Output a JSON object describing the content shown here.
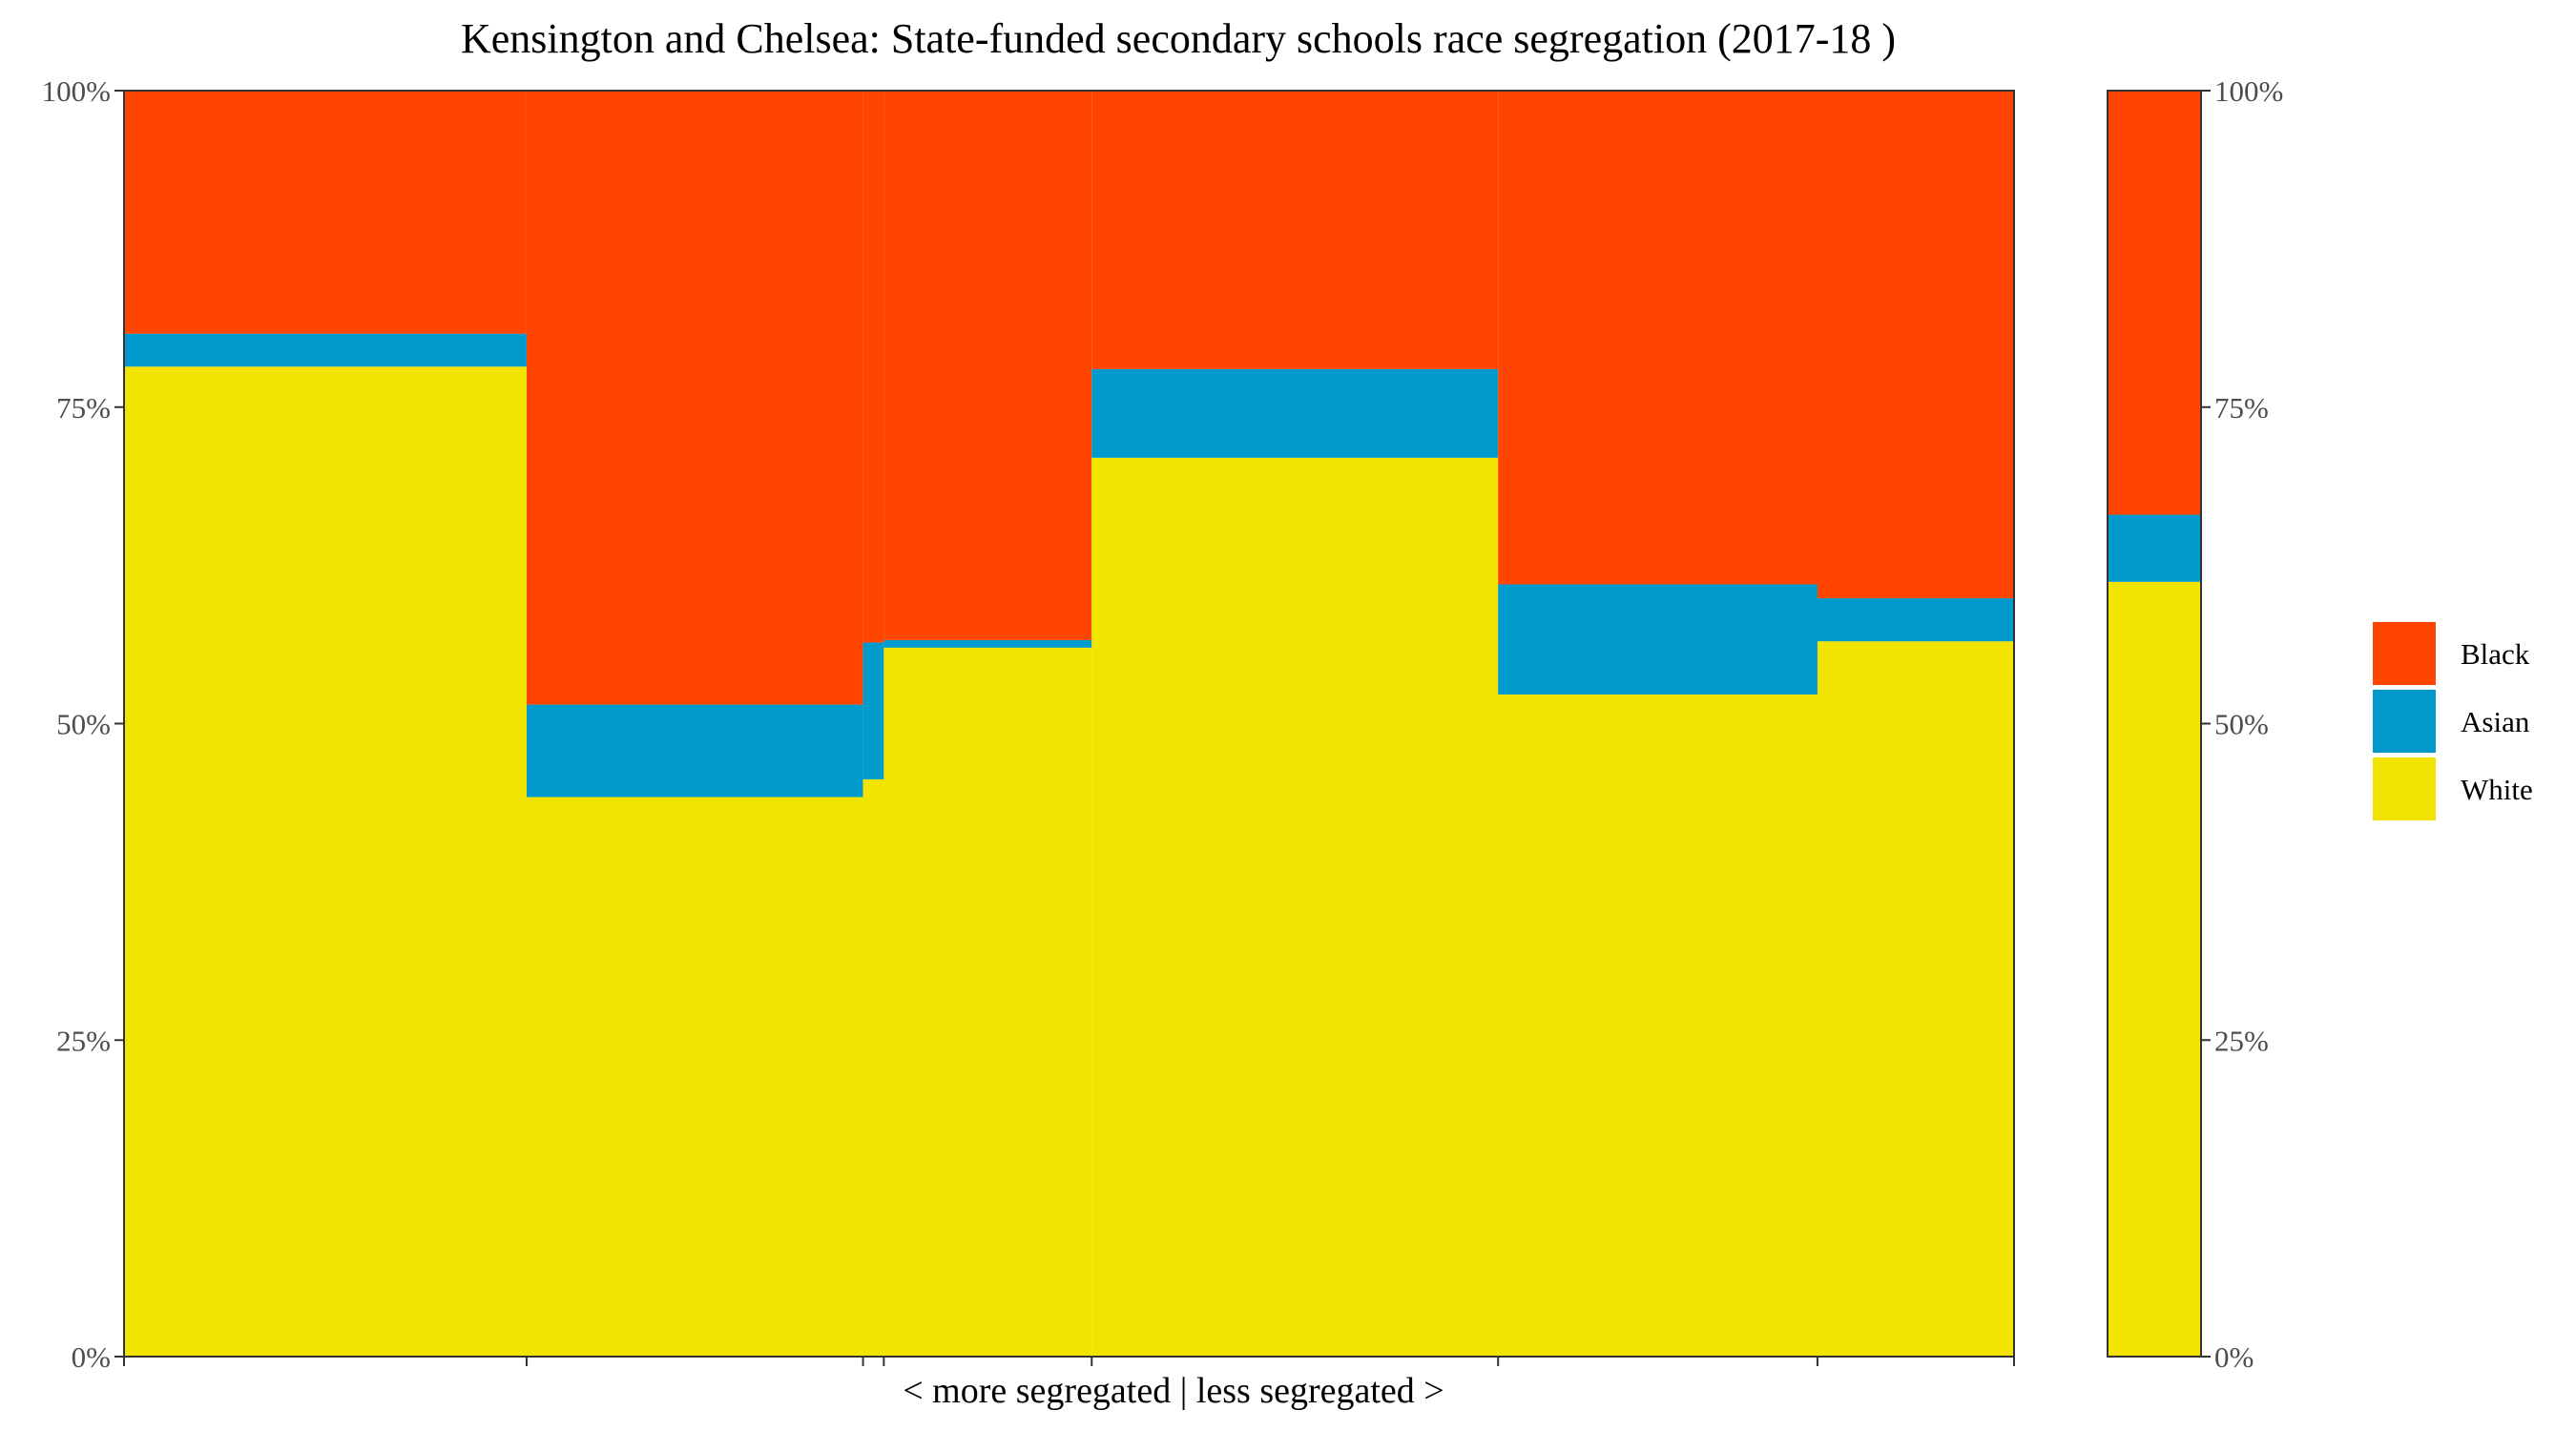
{
  "chart_data": {
    "type": "bar",
    "title": "Kensington and Chelsea: State-funded secondary schools race segregation (2017-18 )",
    "xlabel": "< more segregated | less segregated >",
    "ylabel": "",
    "ylim": [
      0,
      100
    ],
    "y_ticks": [
      "0%",
      "25%",
      "50%",
      "75%",
      "100%"
    ],
    "stack_order": [
      "White",
      "Asian",
      "Black"
    ],
    "colors": {
      "Black": "#ff4500",
      "Asian": "#009acd",
      "White": "#f2e400"
    },
    "legend": {
      "position": "right",
      "entries": [
        "Black",
        "Asian",
        "White"
      ]
    },
    "grid": false,
    "x_scale_total": 100,
    "schools": [
      {
        "width": 21.3,
        "values": {
          "White": 78.2,
          "Asian": 2.6,
          "Black": 19.2
        }
      },
      {
        "width": 17.8,
        "values": {
          "White": 44.2,
          "Asian": 7.3,
          "Black": 48.5
        }
      },
      {
        "width": 1.1,
        "values": {
          "White": 45.6,
          "Asian": 10.8,
          "Black": 43.6
        }
      },
      {
        "width": 11.0,
        "values": {
          "White": 56.0,
          "Asian": 0.6,
          "Black": 43.4
        }
      },
      {
        "width": 21.5,
        "values": {
          "White": 71.0,
          "Asian": 7.0,
          "Black": 22.0
        }
      },
      {
        "width": 16.9,
        "values": {
          "White": 52.3,
          "Asian": 8.7,
          "Black": 39.0
        }
      },
      {
        "width": 10.4,
        "values": {
          "White": 56.5,
          "Asian": 3.4,
          "Black": 40.1
        }
      }
    ],
    "overall": {
      "values": {
        "White": 61.2,
        "Asian": 5.3,
        "Black": 33.5
      }
    }
  }
}
